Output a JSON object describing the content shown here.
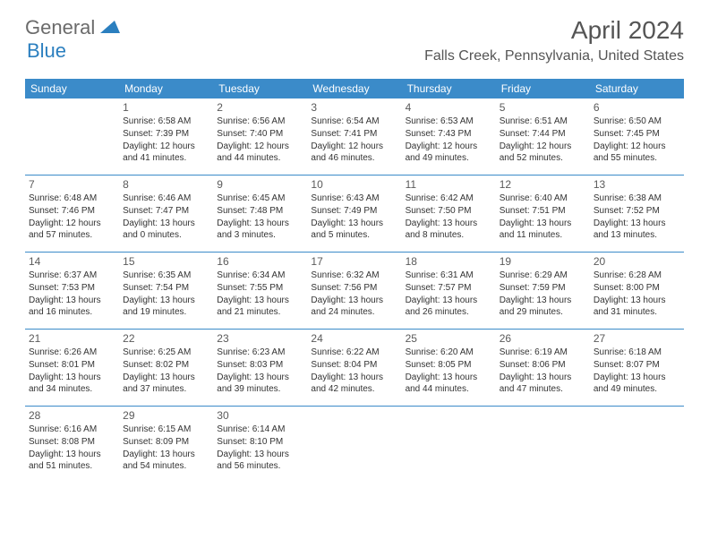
{
  "brand": {
    "part1": "General",
    "part2": "Blue",
    "color1": "#6b6b6b",
    "color2": "#2b7fbf"
  },
  "title": "April 2024",
  "location": "Falls Creek, Pennsylvania, United States",
  "colors": {
    "header_bg": "#3b8bc9",
    "border": "#3b8bc9",
    "text": "#333333"
  },
  "day_names": [
    "Sunday",
    "Monday",
    "Tuesday",
    "Wednesday",
    "Thursday",
    "Friday",
    "Saturday"
  ],
  "weeks": [
    [
      null,
      {
        "n": "1",
        "sr": "6:58 AM",
        "ss": "7:39 PM",
        "dl": "12 hours and 41 minutes."
      },
      {
        "n": "2",
        "sr": "6:56 AM",
        "ss": "7:40 PM",
        "dl": "12 hours and 44 minutes."
      },
      {
        "n": "3",
        "sr": "6:54 AM",
        "ss": "7:41 PM",
        "dl": "12 hours and 46 minutes."
      },
      {
        "n": "4",
        "sr": "6:53 AM",
        "ss": "7:43 PM",
        "dl": "12 hours and 49 minutes."
      },
      {
        "n": "5",
        "sr": "6:51 AM",
        "ss": "7:44 PM",
        "dl": "12 hours and 52 minutes."
      },
      {
        "n": "6",
        "sr": "6:50 AM",
        "ss": "7:45 PM",
        "dl": "12 hours and 55 minutes."
      }
    ],
    [
      {
        "n": "7",
        "sr": "6:48 AM",
        "ss": "7:46 PM",
        "dl": "12 hours and 57 minutes."
      },
      {
        "n": "8",
        "sr": "6:46 AM",
        "ss": "7:47 PM",
        "dl": "13 hours and 0 minutes."
      },
      {
        "n": "9",
        "sr": "6:45 AM",
        "ss": "7:48 PM",
        "dl": "13 hours and 3 minutes."
      },
      {
        "n": "10",
        "sr": "6:43 AM",
        "ss": "7:49 PM",
        "dl": "13 hours and 5 minutes."
      },
      {
        "n": "11",
        "sr": "6:42 AM",
        "ss": "7:50 PM",
        "dl": "13 hours and 8 minutes."
      },
      {
        "n": "12",
        "sr": "6:40 AM",
        "ss": "7:51 PM",
        "dl": "13 hours and 11 minutes."
      },
      {
        "n": "13",
        "sr": "6:38 AM",
        "ss": "7:52 PM",
        "dl": "13 hours and 13 minutes."
      }
    ],
    [
      {
        "n": "14",
        "sr": "6:37 AM",
        "ss": "7:53 PM",
        "dl": "13 hours and 16 minutes."
      },
      {
        "n": "15",
        "sr": "6:35 AM",
        "ss": "7:54 PM",
        "dl": "13 hours and 19 minutes."
      },
      {
        "n": "16",
        "sr": "6:34 AM",
        "ss": "7:55 PM",
        "dl": "13 hours and 21 minutes."
      },
      {
        "n": "17",
        "sr": "6:32 AM",
        "ss": "7:56 PM",
        "dl": "13 hours and 24 minutes."
      },
      {
        "n": "18",
        "sr": "6:31 AM",
        "ss": "7:57 PM",
        "dl": "13 hours and 26 minutes."
      },
      {
        "n": "19",
        "sr": "6:29 AM",
        "ss": "7:59 PM",
        "dl": "13 hours and 29 minutes."
      },
      {
        "n": "20",
        "sr": "6:28 AM",
        "ss": "8:00 PM",
        "dl": "13 hours and 31 minutes."
      }
    ],
    [
      {
        "n": "21",
        "sr": "6:26 AM",
        "ss": "8:01 PM",
        "dl": "13 hours and 34 minutes."
      },
      {
        "n": "22",
        "sr": "6:25 AM",
        "ss": "8:02 PM",
        "dl": "13 hours and 37 minutes."
      },
      {
        "n": "23",
        "sr": "6:23 AM",
        "ss": "8:03 PM",
        "dl": "13 hours and 39 minutes."
      },
      {
        "n": "24",
        "sr": "6:22 AM",
        "ss": "8:04 PM",
        "dl": "13 hours and 42 minutes."
      },
      {
        "n": "25",
        "sr": "6:20 AM",
        "ss": "8:05 PM",
        "dl": "13 hours and 44 minutes."
      },
      {
        "n": "26",
        "sr": "6:19 AM",
        "ss": "8:06 PM",
        "dl": "13 hours and 47 minutes."
      },
      {
        "n": "27",
        "sr": "6:18 AM",
        "ss": "8:07 PM",
        "dl": "13 hours and 49 minutes."
      }
    ],
    [
      {
        "n": "28",
        "sr": "6:16 AM",
        "ss": "8:08 PM",
        "dl": "13 hours and 51 minutes."
      },
      {
        "n": "29",
        "sr": "6:15 AM",
        "ss": "8:09 PM",
        "dl": "13 hours and 54 minutes."
      },
      {
        "n": "30",
        "sr": "6:14 AM",
        "ss": "8:10 PM",
        "dl": "13 hours and 56 minutes."
      },
      null,
      null,
      null,
      null
    ]
  ],
  "labels": {
    "sunrise": "Sunrise:",
    "sunset": "Sunset:",
    "daylight": "Daylight:"
  }
}
